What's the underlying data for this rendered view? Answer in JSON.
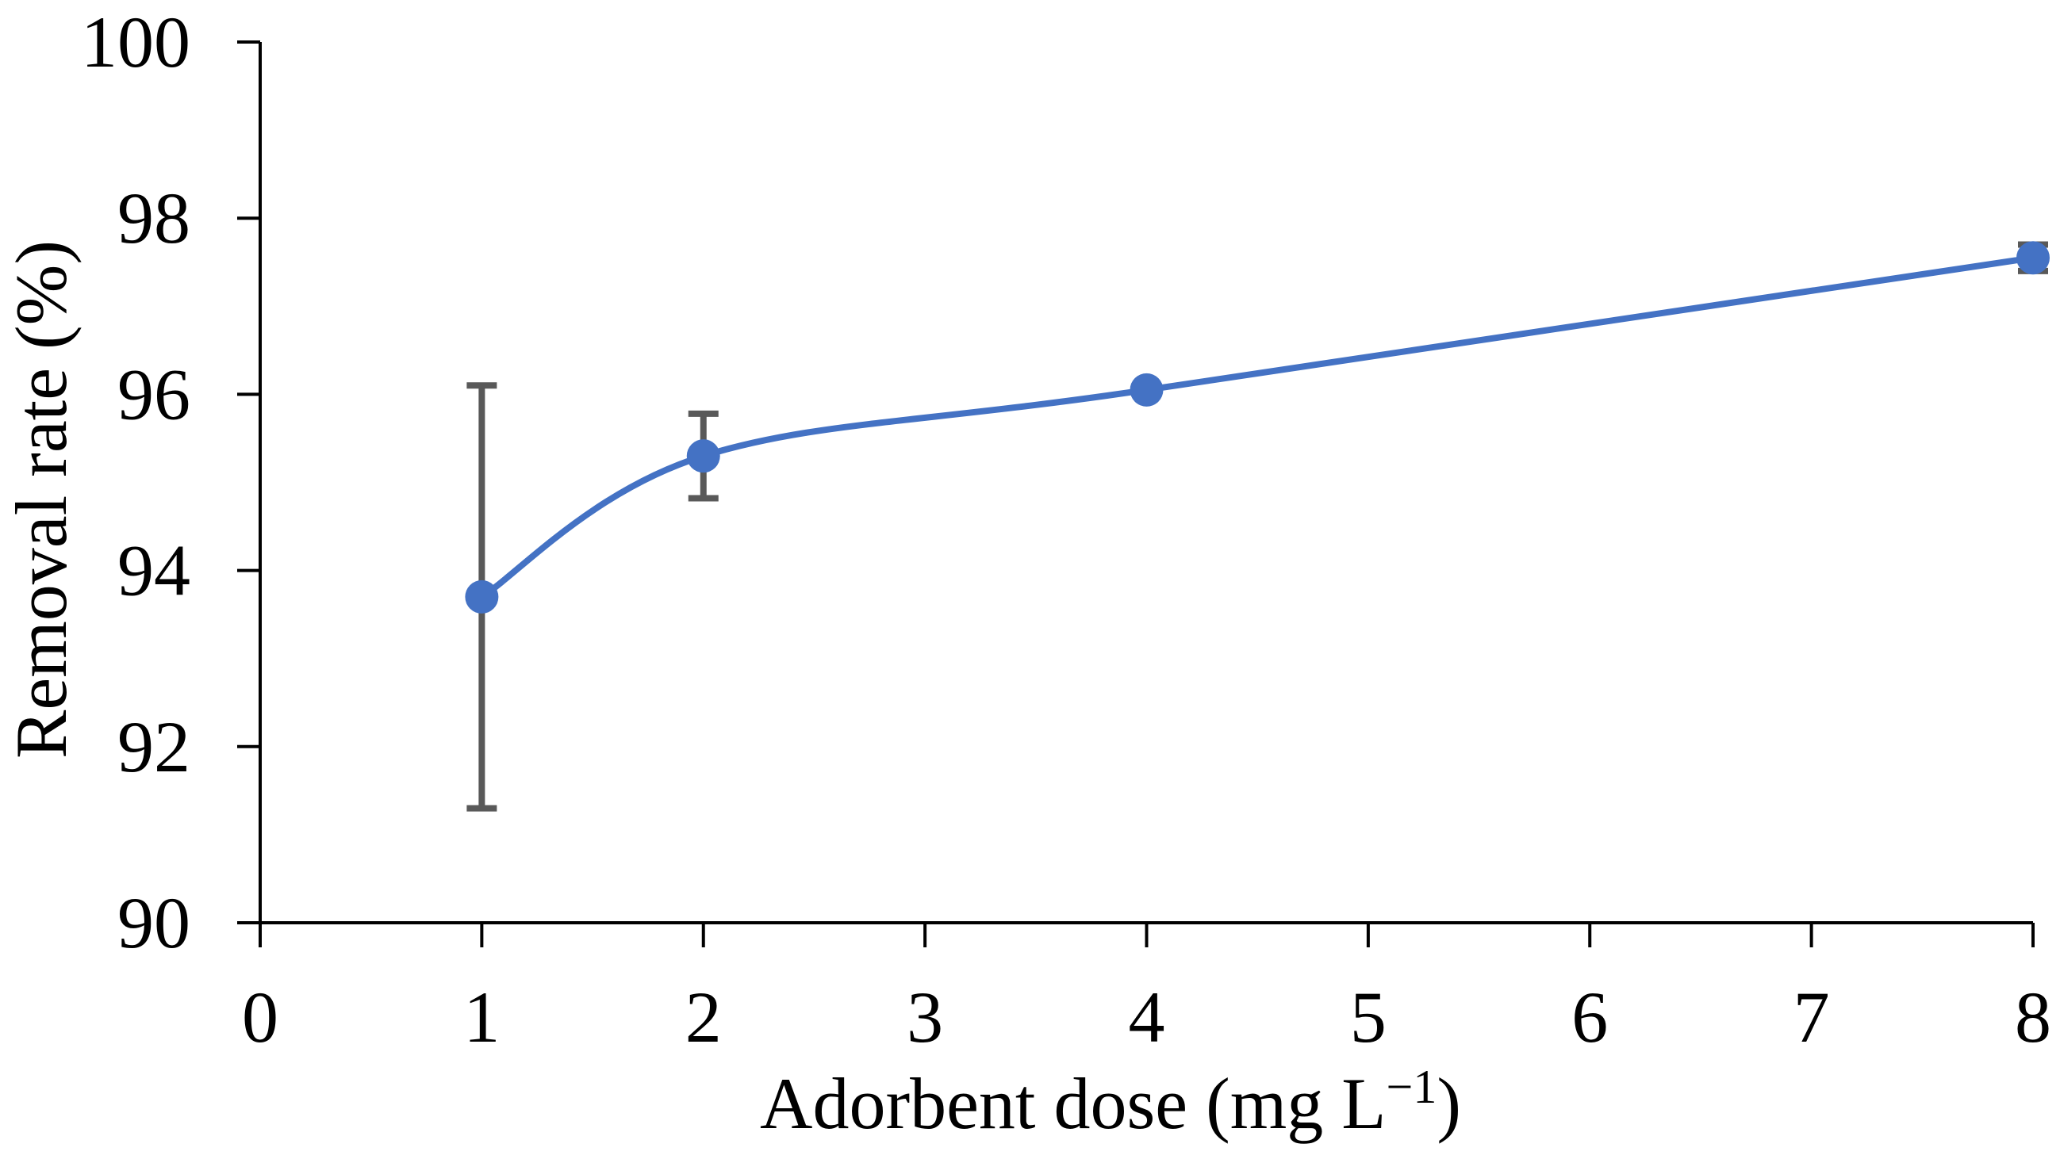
{
  "figure": {
    "background": "#ffffff"
  },
  "chart_data": {
    "type": "line",
    "title": "",
    "series_name": "Removal rate",
    "x": [
      1,
      2,
      4,
      8
    ],
    "y": [
      93.7,
      95.3,
      96.05,
      97.55
    ],
    "yerr": [
      2.4,
      0.48,
      0,
      0.15
    ],
    "xlabel": "Adorbent dose (mg L−1)",
    "xlabel_parts": {
      "main": "Adorbent dose (mg L",
      "sup": "−1",
      "close": ")"
    },
    "ylabel": "Removal rate (%)",
    "xlim": [
      0,
      8
    ],
    "ylim": [
      90,
      100
    ],
    "x_ticks": [
      "0",
      "1",
      "2",
      "3",
      "4",
      "5",
      "6",
      "7",
      "8"
    ],
    "x_tick_values": [
      0,
      1,
      2,
      3,
      4,
      5,
      6,
      7,
      8
    ],
    "y_ticks": [
      "90",
      "92",
      "94",
      "96",
      "98",
      "100"
    ],
    "y_tick_values": [
      90,
      92,
      94,
      96,
      98,
      100
    ],
    "grid": false,
    "legend": false,
    "marker": "circle",
    "smooth": true,
    "colors": {
      "series": "#4472C4",
      "error_bar": "#595959",
      "axis": "#000000",
      "text": "#000000"
    }
  }
}
